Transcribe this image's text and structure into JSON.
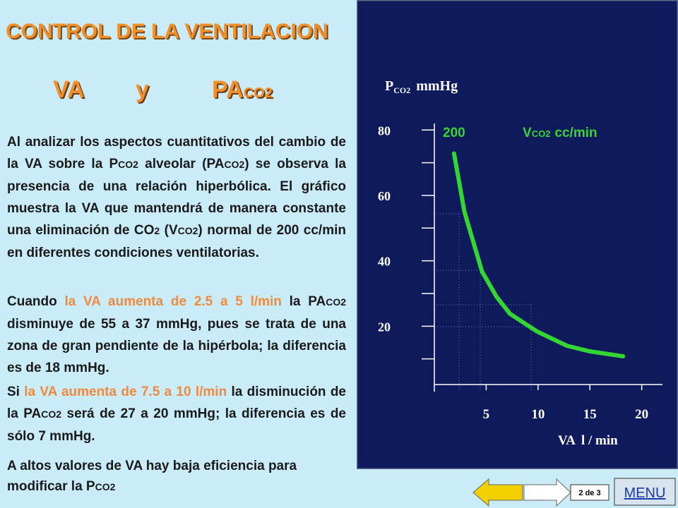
{
  "header": {
    "title": "CONTROL DE LA VENTILACION",
    "va": "VA",
    "y": "y",
    "pa": "PA",
    "pa_sub": "CO2"
  },
  "paragraphs": [
    {
      "runs": [
        {
          "t": "Al analizar los aspectos cuantitativos del cambio de la VA sobre la P"
        },
        {
          "t": "CO2",
          "sub": true
        },
        {
          "t": " alveolar (PA"
        },
        {
          "t": "CO2",
          "sub": true
        },
        {
          "t": ") se observa la presencia de una relación hiperbólica. El gráfico muestra la VA que mantendrá de manera constante una eliminación de CO"
        },
        {
          "t": "2",
          "sub": true
        },
        {
          "t": " (V"
        },
        {
          "t": "CO2",
          "sub": true
        },
        {
          "t": ") normal de 200 cc/min en diferentes condiciones ventilatorias."
        }
      ]
    },
    {
      "runs": [
        {
          "t": "Cuando "
        },
        {
          "t": "la VA aumenta de 2.5 a 5 l/min",
          "color": "#f08a3c"
        },
        {
          "t": " la PA"
        },
        {
          "t": "CO2",
          "sub": true
        },
        {
          "t": " disminuye de 55 a 37 mmHg, pues se trata de una zona de gran pendiente de la hipérbola; la diferencia es de 18 mmHg."
        }
      ]
    },
    {
      "runs": [
        {
          "t": "Si "
        },
        {
          "t": "la VA aumenta de 7.5 a 10 l/min",
          "color": "#f08a3c"
        },
        {
          "t": " la disminución de la PA"
        },
        {
          "t": "CO2",
          "sub": true
        },
        {
          "t": " será de 27 a 20 mmHg; la diferencia es de sólo 7 mmHg."
        }
      ]
    },
    {
      "runs": [
        {
          "t": "A altos valores de VA hay baja eficiencia para modificar la P"
        },
        {
          "t": "CO2",
          "sub": true
        }
      ]
    }
  ],
  "chart_data": {
    "type": "line",
    "y_label": "P",
    "y_label_sub": "CO2",
    "y_unit": "mmHg",
    "x_label": "VA",
    "x_unit": "l / min",
    "legend_label": "V",
    "legend_label_sub": "CO2",
    "legend_unit": "cc/min",
    "series": [
      {
        "name": "200",
        "color": "#33d633",
        "x": [
          1.9,
          2.9,
          4.6,
          6.0,
          7.3,
          9.9,
          12.8,
          15.0,
          18.2
        ],
        "values": [
          72.8,
          55,
          36.7,
          29,
          23.8,
          18.4,
          14,
          12.3,
          10.8
        ]
      }
    ],
    "xlim": [
      0,
      22
    ],
    "xticks": [
      5,
      10,
      15,
      20
    ],
    "ylim": [
      0,
      82
    ],
    "yticks": [
      20,
      40,
      60,
      80
    ],
    "yminorticks": [
      10,
      30,
      50,
      70
    ]
  },
  "nav": {
    "page": "2 de 3",
    "menu": "MENU"
  }
}
